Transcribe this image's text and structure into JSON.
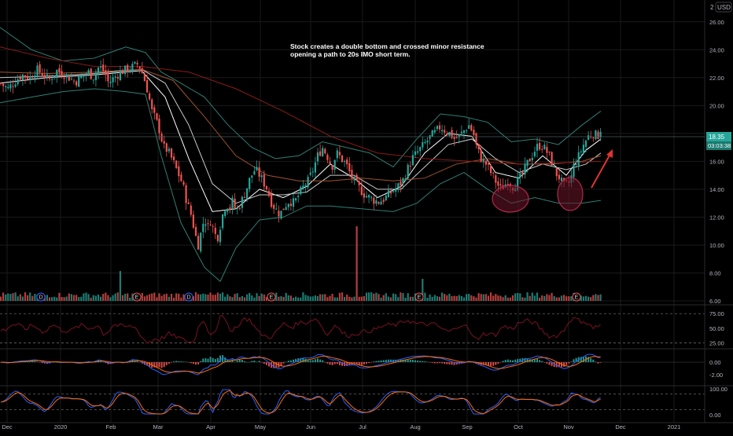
{
  "currency": "USD",
  "axis_top_stub": "2",
  "annotation": {
    "line1": "Stock creates a double bottom and crossed minor resistance",
    "line2": "opening a path to 20s IMO short term."
  },
  "price_badge": {
    "price": "18.35",
    "countdown": "03:03:38"
  },
  "colors": {
    "bg": "#000000",
    "up": "#26a69a",
    "down": "#ef5350",
    "grid": "#1a1a1a",
    "text": "#b2b5be",
    "bb": "#2f7f72",
    "ema1": "#ffffff",
    "ema2": "#c9c9c9",
    "ma_orange": "#a0522d",
    "ma_red": "#8b1a1a",
    "rsi": "#7a1024",
    "macd": "#2962ff",
    "signal": "#ff6d00",
    "stoch_k": "#2962ff",
    "stoch_d": "#ff6d00",
    "circle": "#b0294b",
    "arrow": "#e0342f"
  },
  "event_markers": [
    "D",
    "E",
    "D",
    "E",
    "E",
    "E"
  ],
  "panes": {
    "rsi_ticks": [
      "75.00",
      "50.00",
      "25.00"
    ],
    "macd_ticks": [
      "0.00",
      "-2.00"
    ],
    "stoch_ticks": [
      "100.00",
      "0.00"
    ]
  },
  "chart_data": {
    "type": "candlestick",
    "ylabel": "USD",
    "ylim": [
      6,
      27
    ],
    "y_ticks": [
      "26.00",
      "24.00",
      "22.00",
      "20.00",
      "18.00",
      "16.00",
      "14.00",
      "12.00",
      "10.00",
      "8.00",
      "6.00"
    ],
    "x_ticks": [
      "Dec",
      "2020",
      "Feb",
      "Mar",
      "Apr",
      "May",
      "Jun",
      "Jul",
      "Aug",
      "Sep",
      "Oct",
      "Nov",
      "Dec",
      "2021"
    ],
    "close_path": [
      [
        0,
        21.6
      ],
      [
        10,
        21.2
      ],
      [
        20,
        21.8
      ],
      [
        28,
        22.2
      ],
      [
        38,
        22.0
      ],
      [
        46,
        22.6
      ],
      [
        56,
        22.2
      ],
      [
        62,
        21.8
      ],
      [
        72,
        22.5
      ],
      [
        80,
        22.3
      ],
      [
        88,
        22.0
      ],
      [
        96,
        21.7
      ],
      [
        105,
        22.1
      ],
      [
        113,
        22.4
      ],
      [
        118,
        22.0
      ],
      [
        126,
        22.8
      ],
      [
        133,
        22.4
      ],
      [
        138,
        21.6
      ],
      [
        145,
        22.0
      ],
      [
        153,
        22.4
      ],
      [
        162,
        22.6
      ],
      [
        170,
        22.8
      ],
      [
        176,
        23.0
      ],
      [
        182,
        22.2
      ],
      [
        188,
        21.0
      ],
      [
        193,
        19.6
      ],
      [
        198,
        19.0
      ],
      [
        203,
        18.2
      ],
      [
        208,
        17.0
      ],
      [
        213,
        16.8
      ],
      [
        220,
        16.0
      ],
      [
        226,
        15.2
      ],
      [
        232,
        14.4
      ],
      [
        238,
        13.0
      ],
      [
        244,
        12.0
      ],
      [
        248,
        10.8
      ],
      [
        252,
        10.0
      ],
      [
        256,
        11.0
      ],
      [
        260,
        12.0
      ],
      [
        264,
        11.2
      ],
      [
        268,
        11.8
      ],
      [
        272,
        11.0
      ],
      [
        276,
        10.4
      ],
      [
        280,
        11.4
      ],
      [
        284,
        12.4
      ],
      [
        288,
        13.0
      ],
      [
        292,
        12.6
      ],
      [
        296,
        13.2
      ],
      [
        300,
        12.4
      ],
      [
        306,
        13.0
      ],
      [
        312,
        13.8
      ],
      [
        318,
        14.8
      ],
      [
        324,
        15.4
      ],
      [
        328,
        15.2
      ],
      [
        334,
        14.6
      ],
      [
        340,
        14.0
      ],
      [
        344,
        13.2
      ],
      [
        350,
        12.6
      ],
      [
        356,
        12.2
      ],
      [
        362,
        12.8
      ],
      [
        368,
        13.2
      ],
      [
        374,
        13.0
      ],
      [
        380,
        13.6
      ],
      [
        386,
        14.2
      ],
      [
        392,
        14.6
      ],
      [
        398,
        15.4
      ],
      [
        404,
        16.4
      ],
      [
        410,
        17.0
      ],
      [
        416,
        16.4
      ],
      [
        422,
        15.6
      ],
      [
        428,
        16.6
      ],
      [
        434,
        16.2
      ],
      [
        440,
        15.8
      ],
      [
        446,
        15.0
      ],
      [
        452,
        14.4
      ],
      [
        458,
        14.0
      ],
      [
        464,
        13.6
      ],
      [
        470,
        13.4
      ],
      [
        476,
        13.2
      ],
      [
        482,
        13.1
      ],
      [
        488,
        13.3
      ],
      [
        494,
        13.6
      ],
      [
        500,
        13.9
      ],
      [
        506,
        14.2
      ],
      [
        512,
        14.6
      ],
      [
        518,
        15.4
      ],
      [
        524,
        16.2
      ],
      [
        530,
        16.6
      ],
      [
        536,
        17.0
      ],
      [
        542,
        17.4
      ],
      [
        548,
        17.8
      ],
      [
        554,
        18.1
      ],
      [
        560,
        18.5
      ],
      [
        566,
        18.2
      ],
      [
        572,
        18.0
      ],
      [
        578,
        17.6
      ],
      [
        584,
        17.8
      ],
      [
        590,
        18.2
      ],
      [
        596,
        18.6
      ],
      [
        602,
        18.0
      ],
      [
        606,
        17.0
      ],
      [
        612,
        16.2
      ],
      [
        618,
        15.8
      ],
      [
        624,
        15.2
      ],
      [
        630,
        14.6
      ],
      [
        636,
        14.0
      ],
      [
        640,
        14.2
      ],
      [
        646,
        14.6
      ],
      [
        652,
        14.2
      ],
      [
        658,
        14.6
      ],
      [
        664,
        15.0
      ],
      [
        670,
        15.8
      ],
      [
        676,
        16.4
      ],
      [
        682,
        17.0
      ],
      [
        688,
        17.2
      ],
      [
        694,
        16.8
      ],
      [
        700,
        16.2
      ],
      [
        706,
        15.2
      ],
      [
        712,
        14.8
      ],
      [
        716,
        14.2
      ],
      [
        722,
        14.4
      ],
      [
        726,
        14.8
      ],
      [
        730,
        15.8
      ],
      [
        736,
        16.4
      ],
      [
        742,
        17.2
      ],
      [
        748,
        17.8
      ],
      [
        754,
        18.0
      ],
      [
        760,
        17.8
      ],
      [
        764,
        18.4
      ]
    ],
    "bollinger_band": {
      "upper": [
        [
          0,
          25.6
        ],
        [
          40,
          24.0
        ],
        [
          80,
          23.2
        ],
        [
          120,
          23.4
        ],
        [
          160,
          24.2
        ],
        [
          185,
          23.8
        ],
        [
          205,
          22.4
        ],
        [
          230,
          21.6
        ],
        [
          260,
          20.6
        ],
        [
          290,
          18.6
        ],
        [
          320,
          17.0
        ],
        [
          350,
          16.2
        ],
        [
          380,
          16.4
        ],
        [
          410,
          17.4
        ],
        [
          440,
          17.0
        ],
        [
          470,
          16.6
        ],
        [
          500,
          15.6
        ],
        [
          530,
          17.6
        ],
        [
          560,
          19.4
        ],
        [
          590,
          19.2
        ],
        [
          620,
          18.8
        ],
        [
          650,
          17.4
        ],
        [
          680,
          17.6
        ],
        [
          710,
          17.2
        ],
        [
          740,
          18.6
        ],
        [
          764,
          19.6
        ]
      ],
      "lower": [
        [
          0,
          20.2
        ],
        [
          40,
          20.6
        ],
        [
          80,
          21.0
        ],
        [
          120,
          21.2
        ],
        [
          160,
          21.0
        ],
        [
          185,
          20.8
        ],
        [
          205,
          16.4
        ],
        [
          230,
          11.6
        ],
        [
          260,
          8.4
        ],
        [
          280,
          7.4
        ],
        [
          300,
          9.8
        ],
        [
          330,
          11.8
        ],
        [
          360,
          12.0
        ],
        [
          390,
          12.8
        ],
        [
          420,
          12.8
        ],
        [
          460,
          12.6
        ],
        [
          500,
          12.4
        ],
        [
          530,
          13.0
        ],
        [
          560,
          14.4
        ],
        [
          590,
          15.2
        ],
        [
          620,
          14.0
        ],
        [
          650,
          13.0
        ],
        [
          680,
          13.4
        ],
        [
          710,
          13.0
        ],
        [
          740,
          13.0
        ],
        [
          764,
          13.2
        ]
      ]
    },
    "moving_averages": [
      {
        "color_key": "ema1",
        "points": [
          [
            0,
            21.6
          ],
          [
            60,
            22.0
          ],
          [
            120,
            22.2
          ],
          [
            180,
            22.5
          ],
          [
            210,
            20.6
          ],
          [
            240,
            16.2
          ],
          [
            270,
            12.4
          ],
          [
            300,
            12.6
          ],
          [
            330,
            14.0
          ],
          [
            360,
            13.4
          ],
          [
            390,
            14.2
          ],
          [
            420,
            15.8
          ],
          [
            450,
            14.8
          ],
          [
            480,
            13.4
          ],
          [
            510,
            14.2
          ],
          [
            540,
            16.6
          ],
          [
            570,
            18.0
          ],
          [
            600,
            17.8
          ],
          [
            630,
            15.2
          ],
          [
            660,
            14.8
          ],
          [
            690,
            16.4
          ],
          [
            720,
            15.0
          ],
          [
            745,
            16.8
          ],
          [
            764,
            17.6
          ]
        ]
      },
      {
        "color_key": "ema2",
        "points": [
          [
            0,
            22.0
          ],
          [
            60,
            22.1
          ],
          [
            120,
            22.3
          ],
          [
            180,
            22.6
          ],
          [
            210,
            21.6
          ],
          [
            240,
            18.6
          ],
          [
            270,
            14.4
          ],
          [
            300,
            13.0
          ],
          [
            330,
            13.6
          ],
          [
            360,
            13.6
          ],
          [
            390,
            13.8
          ],
          [
            420,
            15.0
          ],
          [
            450,
            15.0
          ],
          [
            480,
            14.0
          ],
          [
            510,
            14.0
          ],
          [
            540,
            15.6
          ],
          [
            570,
            17.2
          ],
          [
            600,
            17.6
          ],
          [
            630,
            16.2
          ],
          [
            660,
            15.2
          ],
          [
            690,
            15.8
          ],
          [
            720,
            15.4
          ],
          [
            745,
            15.8
          ],
          [
            764,
            16.6
          ]
        ]
      },
      {
        "color_key": "ma_orange",
        "points": [
          [
            0,
            22.4
          ],
          [
            60,
            22.3
          ],
          [
            120,
            22.4
          ],
          [
            180,
            22.6
          ],
          [
            220,
            21.8
          ],
          [
            260,
            19.2
          ],
          [
            300,
            16.4
          ],
          [
            340,
            15.0
          ],
          [
            380,
            14.6
          ],
          [
            420,
            14.6
          ],
          [
            460,
            14.8
          ],
          [
            500,
            14.6
          ],
          [
            540,
            14.8
          ],
          [
            580,
            15.8
          ],
          [
            620,
            16.2
          ],
          [
            660,
            15.8
          ],
          [
            700,
            15.8
          ],
          [
            740,
            16.0
          ],
          [
            764,
            16.4
          ]
        ]
      },
      {
        "color_key": "ma_red",
        "points": [
          [
            0,
            24.2
          ],
          [
            60,
            23.4
          ],
          [
            120,
            22.8
          ],
          [
            180,
            22.8
          ],
          [
            240,
            22.4
          ],
          [
            300,
            21.2
          ],
          [
            360,
            19.6
          ],
          [
            420,
            17.8
          ],
          [
            480,
            16.6
          ],
          [
            540,
            16.2
          ],
          [
            600,
            16.0
          ],
          [
            660,
            15.8
          ],
          [
            720,
            15.9
          ],
          [
            764,
            16.0
          ]
        ]
      }
    ]
  }
}
